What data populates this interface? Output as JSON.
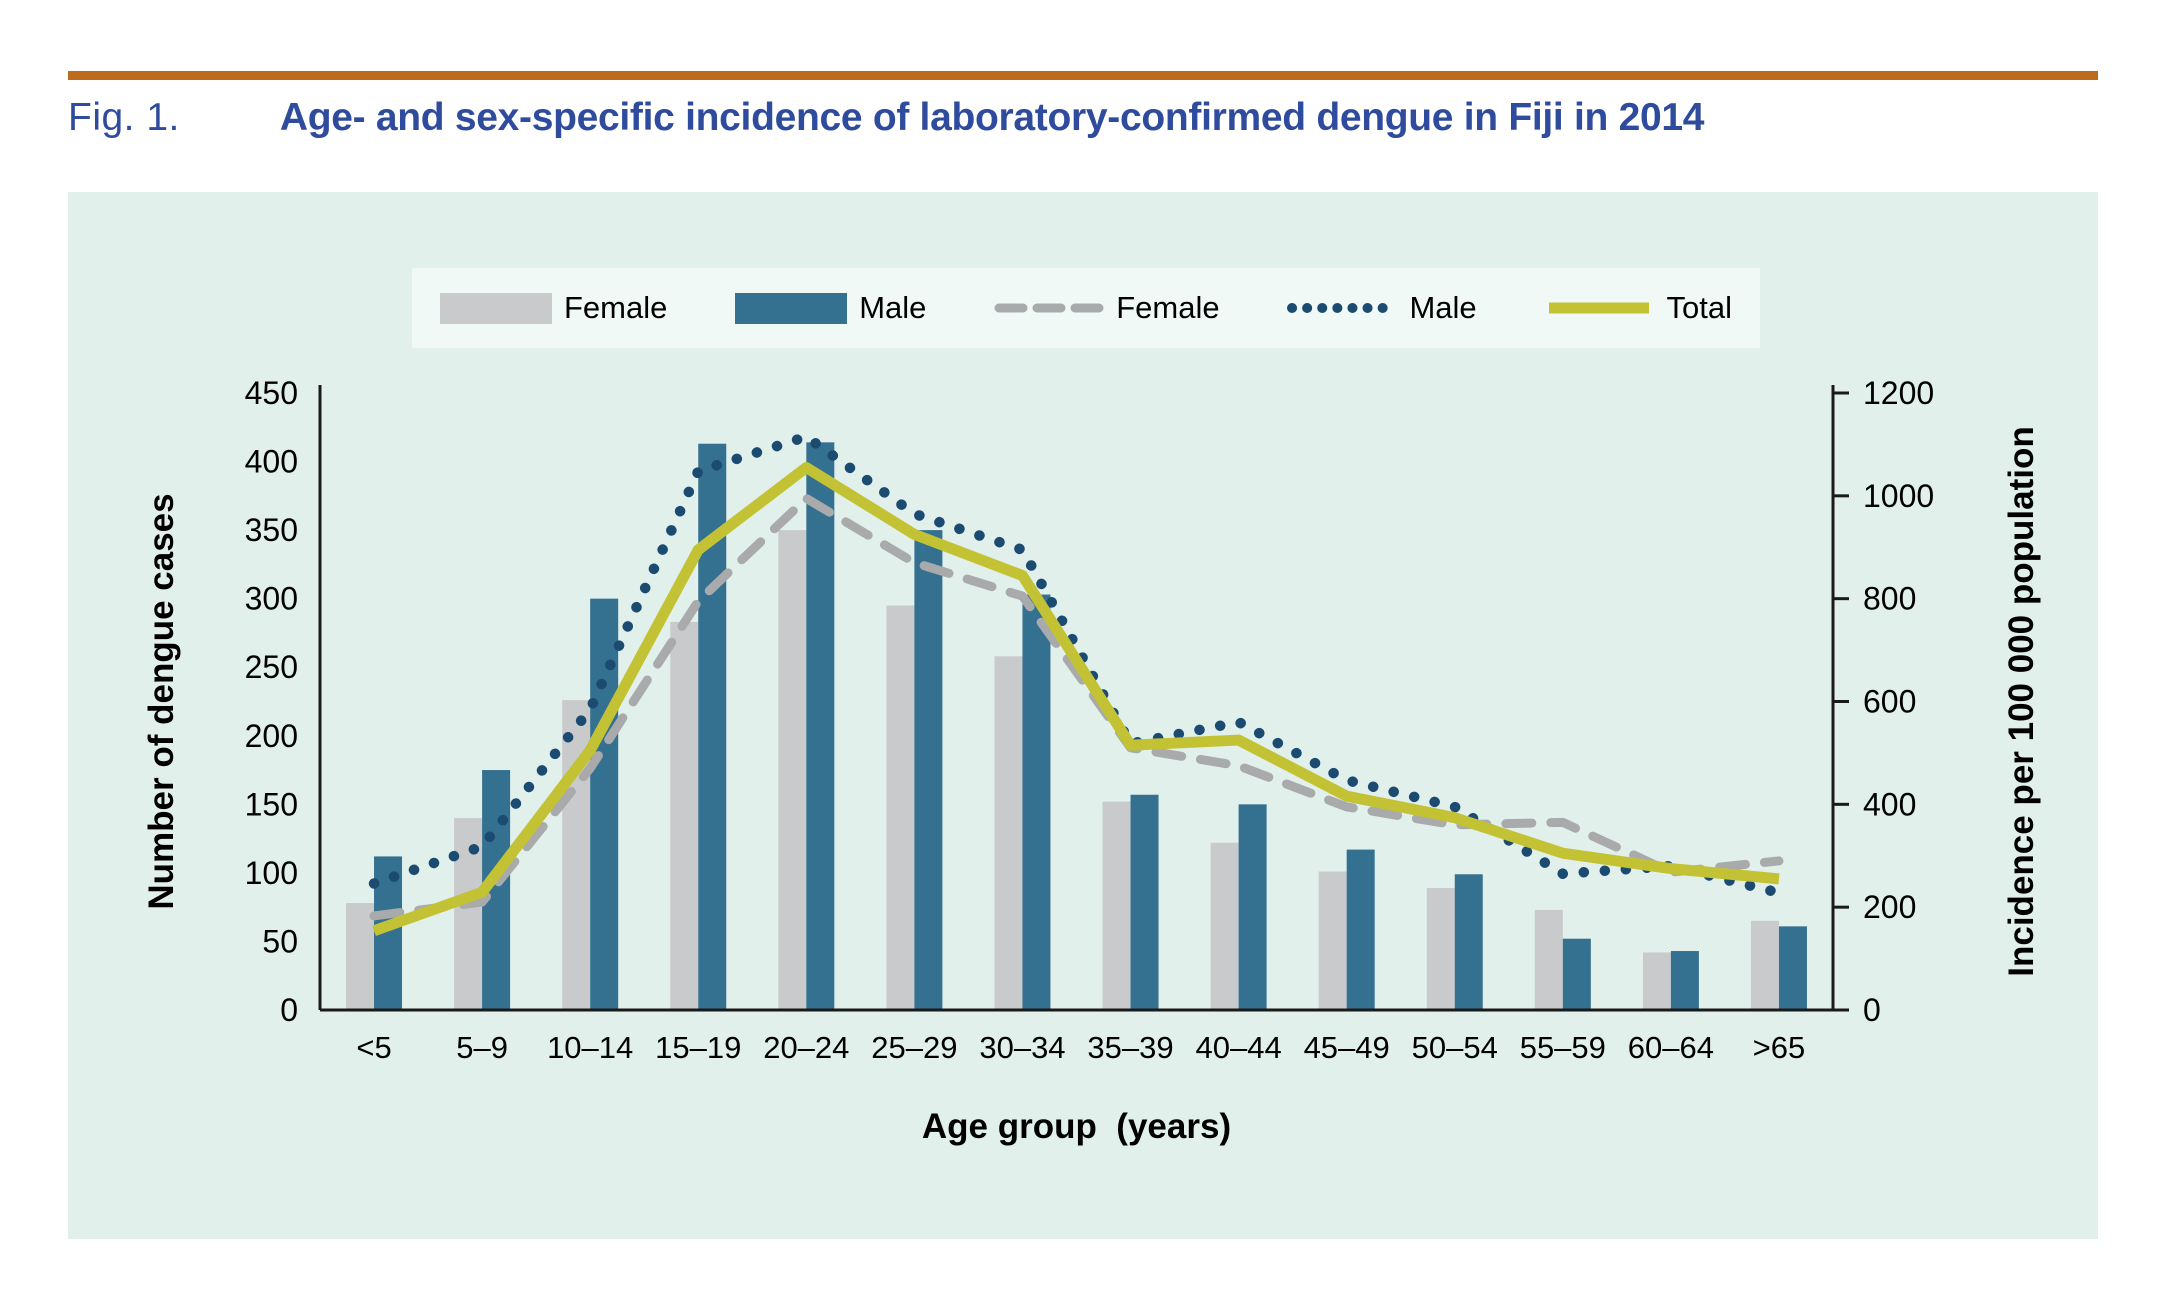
{
  "figure": {
    "label": "Fig. 1.",
    "title": "Age- and sex-specific incidence of laboratory-confirmed dengue in Fiji in 2014"
  },
  "colors": {
    "page_background": "#ffffff",
    "top_rule": "#bd6c1d",
    "title_text": "#2e4b9d",
    "panel_background": "#e2f0ec",
    "legend_background": "#f1f9f6",
    "female_bar": "#c9cacc",
    "male_bar": "#34708f",
    "female_line": "#a8aaac",
    "male_line": "#1c4b72",
    "total_line": "#c3c235",
    "axis": "#1a1a1a"
  },
  "chart_data": {
    "type": "bar+line combo",
    "categories": [
      "<5",
      "5–9",
      "10–14",
      "15–19",
      "20–24",
      "25–29",
      "30–34",
      "35–39",
      "40–44",
      "45–49",
      "50–54",
      "55–59",
      "60–64",
      ">65"
    ],
    "series": [
      {
        "name": "Female",
        "kind": "bar",
        "axis": "left",
        "color": "#c9cacc",
        "values": [
          78,
          140,
          226,
          283,
          350,
          295,
          258,
          152,
          122,
          101,
          89,
          73,
          42,
          65
        ]
      },
      {
        "name": "Male",
        "kind": "bar",
        "axis": "left",
        "color": "#34708f",
        "values": [
          112,
          175,
          300,
          413,
          414,
          350,
          303,
          157,
          150,
          117,
          99,
          52,
          43,
          61
        ]
      },
      {
        "name": "Female",
        "kind": "line",
        "style": "dashed",
        "axis": "right",
        "color": "#a8aaac",
        "values": [
          183,
          210,
          470,
          795,
          995,
          870,
          805,
          510,
          475,
          395,
          360,
          365,
          268,
          290
        ]
      },
      {
        "name": "Male",
        "kind": "line",
        "style": "dotted",
        "axis": "right",
        "color": "#1c4b72",
        "values": [
          246,
          318,
          585,
          1048,
          1115,
          965,
          895,
          518,
          560,
          447,
          395,
          265,
          280,
          228
        ]
      },
      {
        "name": "Total",
        "kind": "line",
        "style": "solid",
        "axis": "right",
        "color": "#c3c235",
        "values": [
          154,
          229,
          505,
          895,
          1055,
          925,
          845,
          515,
          525,
          416,
          374,
          305,
          275,
          255
        ]
      }
    ],
    "left_axis": {
      "label": "Number of dengue cases",
      "min": 0,
      "max": 450,
      "step": 50
    },
    "right_axis": {
      "label": "Incidence per 100 000 population",
      "min": 0,
      "max": 1200,
      "step": 200
    },
    "xlabel": "Age group  (years)",
    "grid": false,
    "legend_position": "top-center"
  }
}
